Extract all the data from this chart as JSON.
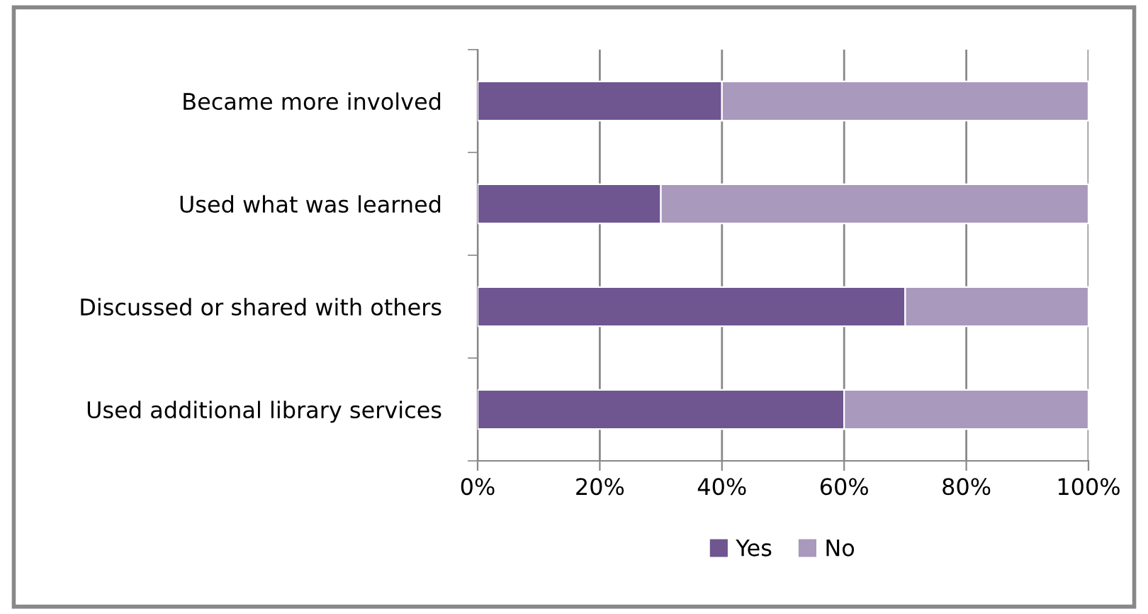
{
  "chart_data": {
    "type": "bar",
    "orientation": "horizontal",
    "stacked": true,
    "categories": [
      "Became more involved",
      "Used what was learned",
      "Discussed or shared with others",
      "Used additional library services"
    ],
    "series": [
      {
        "name": "Yes",
        "color": "#6f5690",
        "values": [
          40,
          30,
          70,
          60
        ]
      },
      {
        "name": "No",
        "color": "#a899bd",
        "values": [
          60,
          70,
          30,
          40
        ]
      }
    ],
    "xlim": [
      0,
      100
    ],
    "xticks": [
      {
        "value": 0,
        "label": "0%"
      },
      {
        "value": 20,
        "label": "20%"
      },
      {
        "value": 40,
        "label": "40%"
      },
      {
        "value": 60,
        "label": "60%"
      },
      {
        "value": 80,
        "label": "80%"
      },
      {
        "value": 100,
        "label": "100%"
      }
    ],
    "grid": "x",
    "legend": "bottom"
  }
}
